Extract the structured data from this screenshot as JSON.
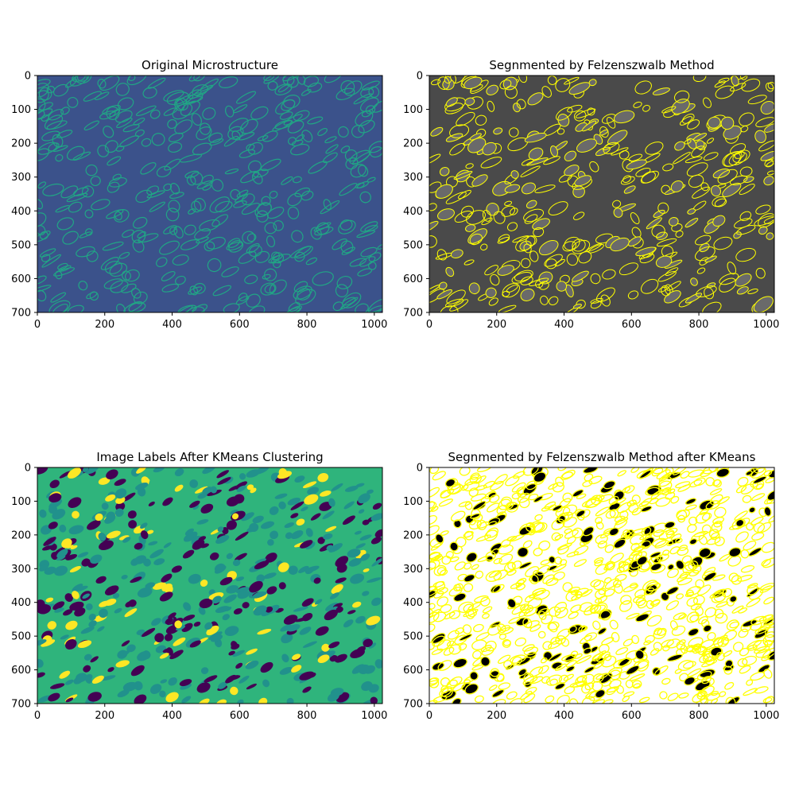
{
  "chart_data": [
    {
      "type": "heatmap",
      "title": "Original Microstructure",
      "xlim": [
        0,
        1024
      ],
      "ylim": [
        700,
        0
      ],
      "xticks": [
        "0",
        "200",
        "400",
        "600",
        "800",
        "1000"
      ],
      "yticks": [
        "0",
        "100",
        "200",
        "300",
        "400",
        "500",
        "600",
        "700"
      ],
      "colormap": "viridis",
      "colors": {
        "background": "#3b528b",
        "boundary": "#21a585"
      }
    },
    {
      "type": "heatmap",
      "title": "Segnmented by Felzenszwalb Method",
      "xlim": [
        0,
        1024
      ],
      "ylim": [
        700,
        0
      ],
      "xticks": [
        "0",
        "200",
        "400",
        "600",
        "800",
        "1000"
      ],
      "yticks": [
        "0",
        "100",
        "200",
        "300",
        "400",
        "500",
        "600",
        "700"
      ],
      "colormap": "gray",
      "colors": {
        "background": "#4a4a4a",
        "boundary": "#ffff00"
      }
    },
    {
      "type": "heatmap",
      "title": "Image Labels After KMeans Clustering",
      "xlim": [
        0,
        1024
      ],
      "ylim": [
        700,
        0
      ],
      "xticks": [
        "0",
        "200",
        "400",
        "600",
        "800",
        "1000"
      ],
      "yticks": [
        "0",
        "100",
        "200",
        "300",
        "400",
        "500",
        "600",
        "700"
      ],
      "colormap": "viridis",
      "colors": {
        "background": "#2fb47c",
        "secondary": "#21918c",
        "dark": "#440154",
        "boundary": "#fde725"
      }
    },
    {
      "type": "heatmap",
      "title": "Segnmented by Felzenszwalb Method after KMeans",
      "xlim": [
        0,
        1024
      ],
      "ylim": [
        700,
        0
      ],
      "xticks": [
        "0",
        "200",
        "400",
        "600",
        "800",
        "1000"
      ],
      "yticks": [
        "0",
        "100",
        "200",
        "300",
        "400",
        "500",
        "600",
        "700"
      ],
      "colormap": "gray",
      "colors": {
        "background": "#ffffff",
        "dark": "#000000",
        "boundary": "#ffff00"
      }
    }
  ]
}
